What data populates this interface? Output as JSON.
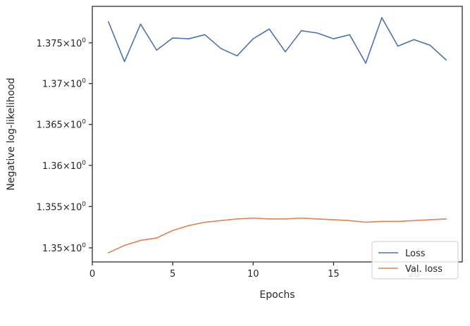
{
  "chart_data": {
    "type": "line",
    "xlabel": "Epochs",
    "ylabel": "Negative log-likelihood",
    "xlim": [
      0,
      23
    ],
    "ylim": [
      1.3483,
      1.3795
    ],
    "yscale": "log",
    "grid": false,
    "legend_position": "lower-right",
    "x_ticks": [
      {
        "value": 0,
        "label": "0"
      },
      {
        "value": 5,
        "label": "5"
      },
      {
        "value": 10,
        "label": "10"
      },
      {
        "value": 15,
        "label": "15"
      },
      {
        "value": 20,
        "label": "20"
      }
    ],
    "y_ticks": [
      {
        "value": 1.35,
        "base": "1.35",
        "exp": "0"
      },
      {
        "value": 1.355,
        "base": "1.355",
        "exp": "0"
      },
      {
        "value": 1.36,
        "base": "1.36",
        "exp": "0"
      },
      {
        "value": 1.365,
        "base": "1.365",
        "exp": "0"
      },
      {
        "value": 1.37,
        "base": "1.37",
        "exp": "0"
      },
      {
        "value": 1.375,
        "base": "1.375",
        "exp": "0"
      }
    ],
    "x": [
      1,
      2,
      3,
      4,
      5,
      6,
      7,
      8,
      9,
      10,
      11,
      12,
      13,
      14,
      15,
      16,
      17,
      18,
      19,
      20,
      21,
      22
    ],
    "series": [
      {
        "name": "Loss",
        "color": "#4c72b0",
        "values": [
          1.3776,
          1.3727,
          1.3773,
          1.3741,
          1.3756,
          1.3755,
          1.376,
          1.3743,
          1.3734,
          1.3755,
          1.3767,
          1.3739,
          1.3765,
          1.3762,
          1.3755,
          1.376,
          1.3725,
          1.3781,
          1.3746,
          1.3754,
          1.3747,
          1.3729
        ]
      },
      {
        "name": "Val. loss",
        "color": "#dd8452",
        "values": [
          1.3494,
          1.3503,
          1.3509,
          1.3512,
          1.3521,
          1.3527,
          1.3531,
          1.3533,
          1.3535,
          1.3536,
          1.3535,
          1.3535,
          1.3536,
          1.3535,
          1.3534,
          1.3533,
          1.3531,
          1.3532,
          1.3532,
          1.3533,
          1.3534,
          1.3535
        ]
      }
    ]
  }
}
